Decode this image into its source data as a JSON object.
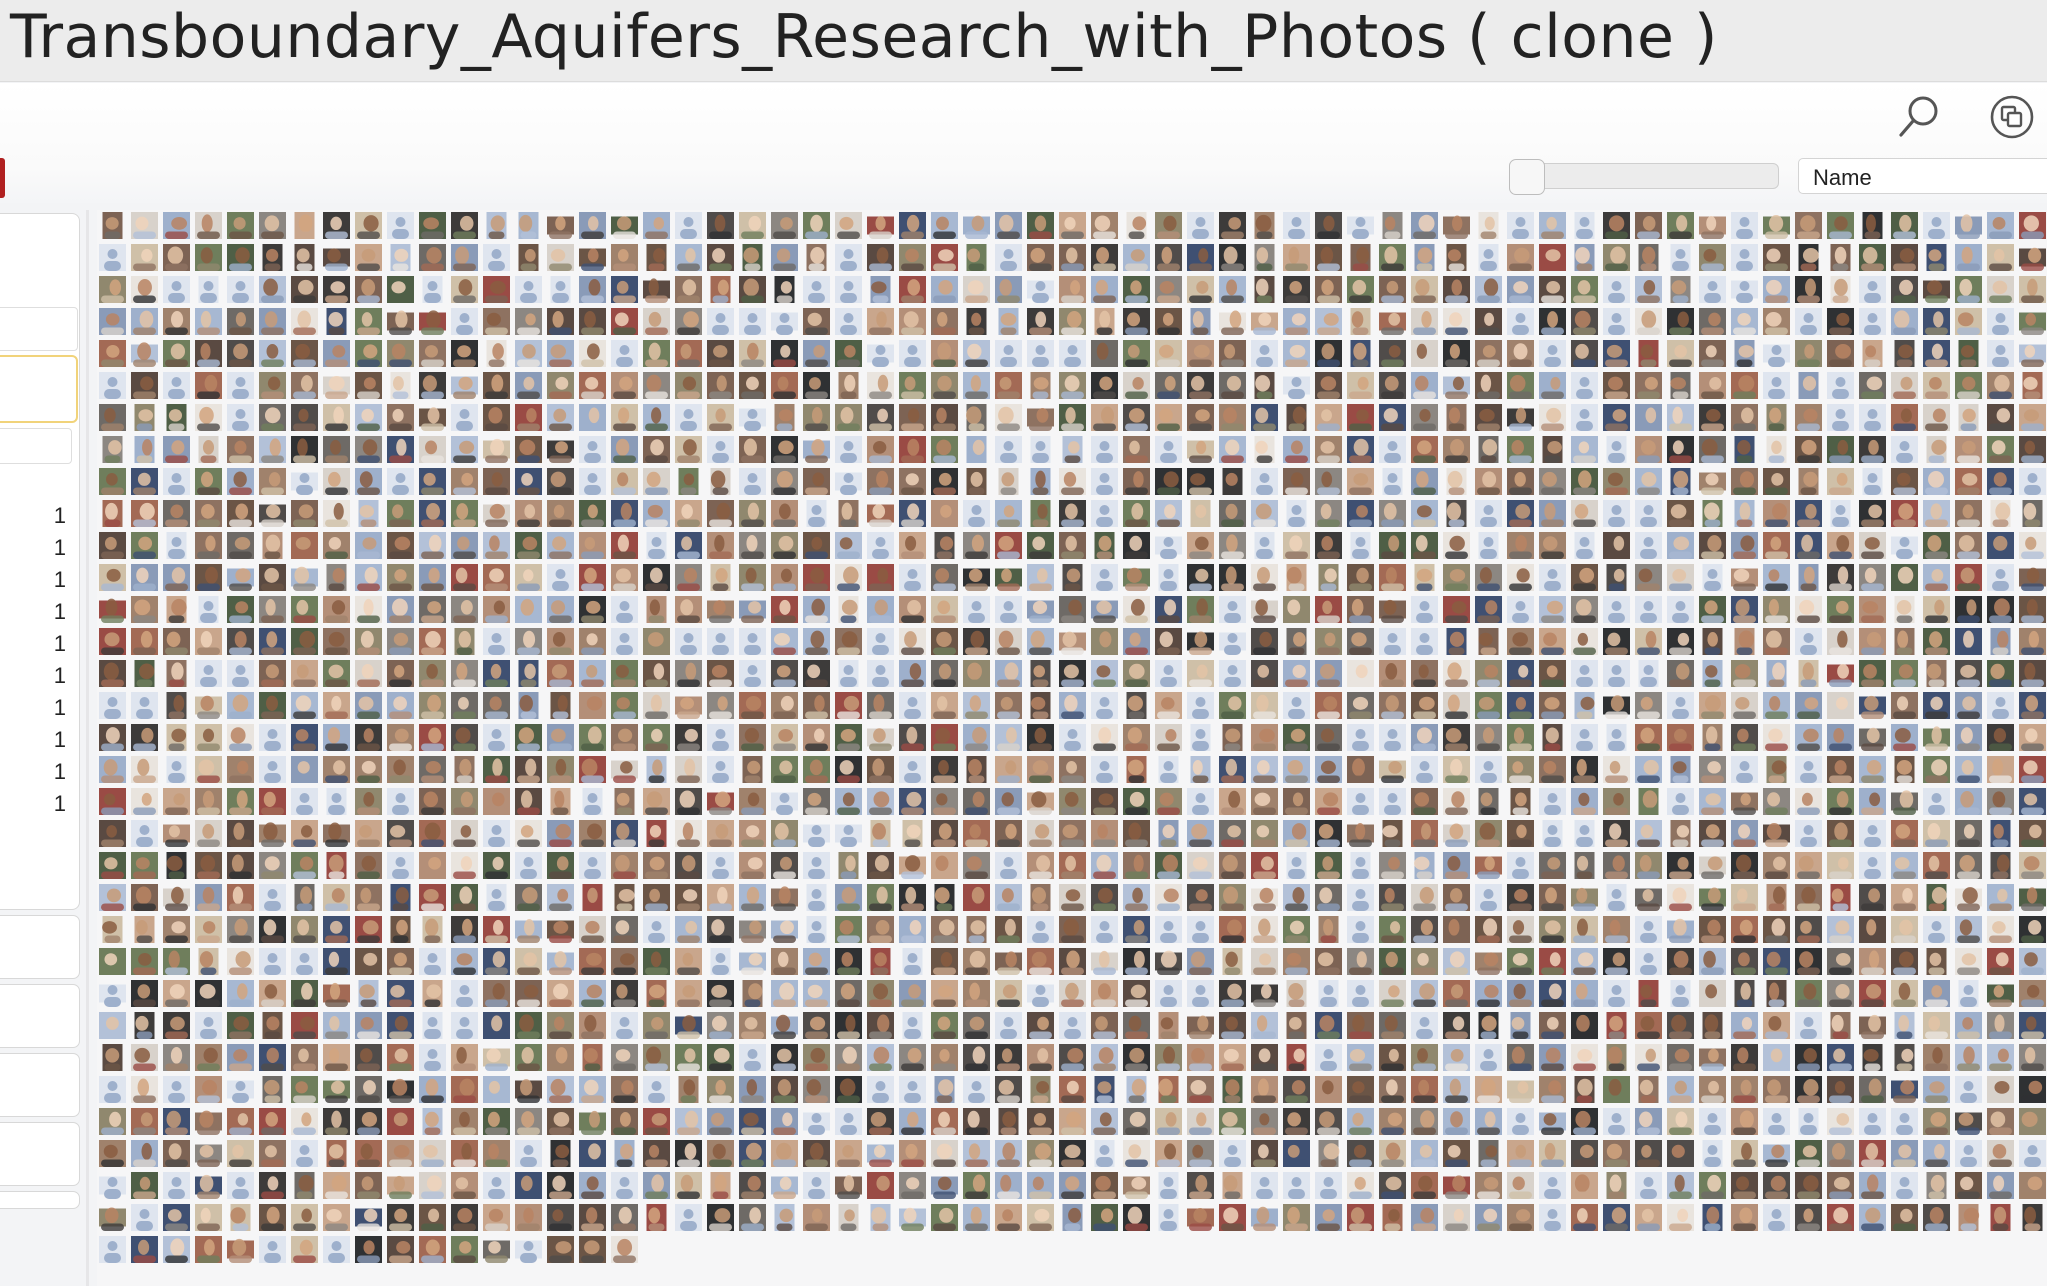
{
  "window": {
    "title": "Transboundary_Aquifers_Research_with_Photos ( clone )"
  },
  "toolbar": {
    "search_icon": "search-icon",
    "view_icon": "copy-view-icon",
    "sort_select_value": "Name",
    "size_slider_level": 0
  },
  "sidebar": {
    "counts": [
      "1",
      "1",
      "1",
      "1",
      "1",
      "1",
      "1",
      "1",
      "1",
      "1"
    ]
  },
  "gallery": {
    "item_type": "photo-thumbnail",
    "palette": [
      "#8a9bb8",
      "#9eb0cc",
      "#a7b8d2",
      "#b3c1d8",
      "#5a4a42",
      "#6b5546",
      "#7d6354",
      "#8e7261",
      "#a0826c",
      "#b48f78",
      "#c9a68c",
      "#3d3b3a",
      "#2f3133",
      "#504c4a",
      "#6e6a66",
      "#8c8782",
      "#d8d2cb",
      "#e9e4de",
      "#4f5f46",
      "#6f7e5c",
      "#90886e",
      "#a36a55",
      "#3f5072",
      "#9a4b45",
      "#cfc0a8"
    ],
    "accent": "#b02020"
  }
}
